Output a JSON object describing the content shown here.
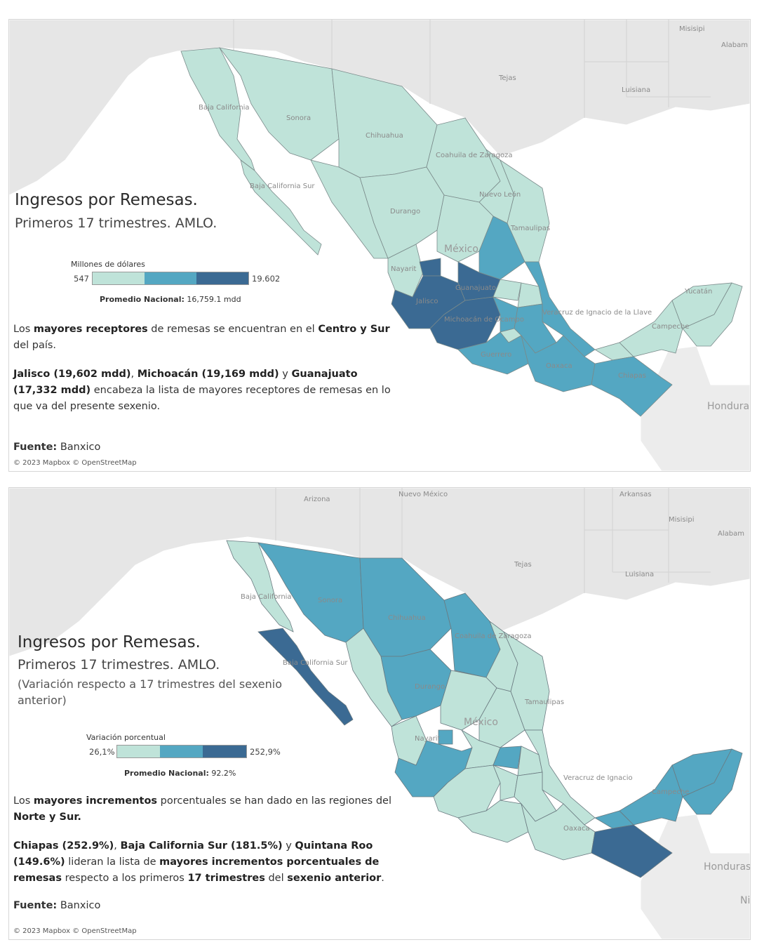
{
  "colors": {
    "light": "#bfe3d9",
    "mid": "#54a7c2",
    "dark": "#3b6a93",
    "land": "#e5e5e5",
    "water": "#ffffff"
  },
  "panel1": {
    "title": "Ingresos por Remesas.",
    "subtitle": "Primeros 17 trimestres. AMLO.",
    "legend": {
      "title": "Millones de dólares",
      "min": "547",
      "max": "19.602"
    },
    "promedio_label": "Promedio Nacional:",
    "promedio_value": "16,759.1 mdd",
    "para1": {
      "t1": "Los ",
      "b1": "mayores receptores",
      "t2": " de remesas se encuentran en el ",
      "b2": "Centro y Sur",
      "t3": " del país."
    },
    "para2": {
      "b1": "Jalisco (19,602 mdd)",
      "t1": ", ",
      "b2": "Michoacán (19,169 mdd)",
      "t2": " y ",
      "b3": "Guanajuato (17,332 mdd)",
      "t3": " encabeza la lista de mayores receptores de remesas en lo que va del presente sexenio."
    },
    "fuente_label": "Fuente:",
    "fuente_value": " Banxico",
    "attribution": "© 2023 Mapbox © OpenStreetMap",
    "map_labels": {
      "misisipi": "Misisipi",
      "alabama": "Alabam",
      "tejas": "Tejas",
      "luisiana": "Luisiana",
      "baja_california": "Baja California",
      "sonora": "Sonora",
      "chihuahua": "Chihuahua",
      "coahuila": "Coahuila de Zaragoza",
      "baja_california_sur": "Baja California Sur",
      "durango": "Durango",
      "nuevo_leon": "Nuevo León",
      "tamaulipas": "Tamaulipas",
      "mexico": "México",
      "nayarit": "Nayarit",
      "guanajuato": "Guanajuato",
      "jalisco": "Jalisco",
      "michoacan": "Michoacán de Ocampo",
      "veracruz": "Veracruz de Ignacio de la Llave",
      "yucatan": "Yucatán",
      "campeche": "Campeche",
      "guerrero": "Guerrero",
      "oaxaca": "Oaxaca",
      "chiapas": "Chiapas",
      "honduras": "Hondura"
    }
  },
  "panel2": {
    "title": "Ingresos por Remesas.",
    "subtitle": "Primeros 17 trimestres. AMLO.",
    "subtitle2": "(Variación respecto a 17 trimestres del sexenio anterior)",
    "legend": {
      "title": "Variación porcentual",
      "min": "26,1%",
      "max": "252,9%"
    },
    "promedio_label": "Promedio Nacional:",
    "promedio_value": "92.2%",
    "para1": {
      "t1": "Los ",
      "b1": "mayores incrementos",
      "t2": " porcentuales se han dado en las regiones del ",
      "b2": "Norte y Sur."
    },
    "para2": {
      "b1": "Chiapas (252.9%)",
      "t1": ", ",
      "b2": "Baja California Sur (181.5%)",
      "t2": " y ",
      "b3": "Quintana Roo (149.6%)",
      "t3": " lideran la lista de ",
      "b4": "mayores incrementos porcentuales de remesas",
      "t4": " respecto a los primeros ",
      "b5": "17 trimestres",
      "t5": " del ",
      "b6": "sexenio anterior",
      "t6": "."
    },
    "fuente_label": "Fuente:",
    "fuente_value": " Banxico",
    "attribution": "© 2023 Mapbox © OpenStreetMap",
    "map_labels": {
      "arizona": "Arizona",
      "nuevo_mexico": "Nuevo México",
      "arkansas": "Arkansas",
      "misisipi": "Misisipi",
      "alabama": "Alabam",
      "tejas": "Tejas",
      "luisiana": "Luisiana",
      "baja_california": "Baja California",
      "sonora": "Sonora",
      "chihuahua": "Chihuahua",
      "coahuila": "Coahuila de Zaragoza",
      "baja_california_sur": "Baja California Sur",
      "durango": "Durango",
      "mexico": "México",
      "nayarit": "Nayarit",
      "tamaulipas": "Tamaulipas",
      "veracruz": "Veracruz de Ignacio",
      "campeche": "Campeche",
      "oaxaca": "Oaxaca",
      "honduras": "Honduras",
      "nicaragua": "Ni"
    }
  }
}
